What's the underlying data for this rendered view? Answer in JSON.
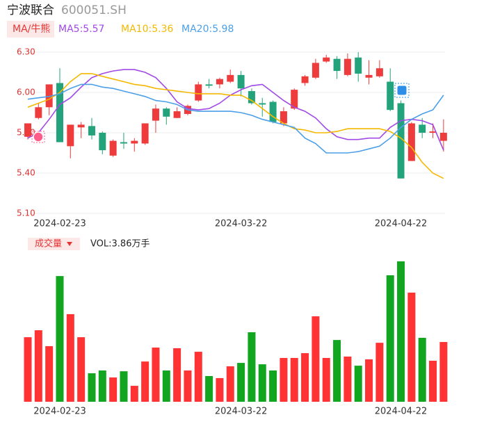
{
  "header": {
    "name": "宁波联合",
    "code": "600051.SH"
  },
  "legend": {
    "tag": "MA/牛熊",
    "items": [
      {
        "label": "MA5:5.57",
        "color": "#a148e6"
      },
      {
        "label": "MA10:5.36",
        "color": "#f5b800"
      },
      {
        "label": "MA20:5.98",
        "color": "#4a9fe8"
      }
    ]
  },
  "chart_data": [
    {
      "type": "candlestick",
      "categories": [
        null,
        null,
        null,
        "2024-02-23",
        null,
        null,
        null,
        null,
        null,
        null,
        null,
        null,
        null,
        null,
        null,
        null,
        null,
        null,
        null,
        null,
        "2024-03-22",
        null,
        null,
        null,
        null,
        null,
        null,
        null,
        null,
        null,
        null,
        null,
        null,
        null,
        null,
        "2024-04-22",
        null,
        null,
        null,
        null
      ],
      "open": [
        5.67,
        5.81,
        5.89,
        6.07,
        5.6,
        5.74,
        5.75,
        5.7,
        5.53,
        5.63,
        5.62,
        5.62,
        5.79,
        5.88,
        5.81,
        5.84,
        5.94,
        6.06,
        6.06,
        6.08,
        6.13,
        6.01,
        5.92,
        5.93,
        5.77,
        5.88,
        6.07,
        6.11,
        6.23,
        6.25,
        6.13,
        6.26,
        6.11,
        6.12,
        6.08,
        5.92,
        5.49,
        5.76,
        5.7,
        5.64
      ],
      "high": [
        5.77,
        5.92,
        6.06,
        6.18,
        5.76,
        5.78,
        5.81,
        5.71,
        5.65,
        5.7,
        5.66,
        5.77,
        5.91,
        5.89,
        5.89,
        5.91,
        6.08,
        6.1,
        6.11,
        6.17,
        6.16,
        6.03,
        5.96,
        5.94,
        5.89,
        6.03,
        6.13,
        6.25,
        6.28,
        6.27,
        6.29,
        6.3,
        6.24,
        6.24,
        6.18,
        5.94,
        5.78,
        5.81,
        5.77,
        5.8
      ],
      "low": [
        5.65,
        5.8,
        5.83,
        5.63,
        5.51,
        5.66,
        5.65,
        5.54,
        5.52,
        5.58,
        5.56,
        5.61,
        5.7,
        5.76,
        5.81,
        5.83,
        5.93,
        6.03,
        6.03,
        6.07,
        5.97,
        5.91,
        5.82,
        5.77,
        5.75,
        5.87,
        6.05,
        6.1,
        6.22,
        6.1,
        6.12,
        6.08,
        6.06,
        6.11,
        5.86,
        5.36,
        5.49,
        5.66,
        5.66,
        5.56
      ],
      "close": [
        5.77,
        5.89,
        6.06,
        5.63,
        5.76,
        5.76,
        5.68,
        5.57,
        5.64,
        5.62,
        5.64,
        5.77,
        5.88,
        5.82,
        5.86,
        5.9,
        6.06,
        6.05,
        6.1,
        6.13,
        6.03,
        5.92,
        5.91,
        5.78,
        5.86,
        6.02,
        6.12,
        6.22,
        6.26,
        6.16,
        6.25,
        6.14,
        6.13,
        6.18,
        5.87,
        5.36,
        5.77,
        5.7,
        5.71,
        5.7
      ],
      "up_color": "#ee3b3b",
      "down_color": "#23a37b",
      "series": [
        {
          "name": "MA5",
          "color": "#a148e6",
          "values": [
            5.66,
            5.7,
            5.8,
            5.91,
            5.96,
            6.04,
            6.11,
            6.14,
            6.16,
            6.17,
            6.17,
            6.15,
            6.11,
            6.03,
            5.93,
            5.88,
            5.87,
            5.88,
            5.92,
            5.98,
            6.02,
            6.05,
            6.06,
            6.0,
            5.94,
            5.89,
            5.86,
            5.81,
            5.73,
            5.67,
            5.65,
            5.65,
            5.66,
            5.66,
            5.74,
            5.79,
            5.8,
            5.79,
            5.76,
            5.57
          ]
        },
        {
          "name": "MA10",
          "color": "#f5b800",
          "values": [
            5.89,
            5.92,
            5.95,
            6.0,
            6.08,
            6.14,
            6.14,
            6.12,
            6.1,
            6.08,
            6.06,
            6.05,
            6.03,
            6.02,
            6.01,
            6.0,
            5.99,
            5.99,
            5.99,
            5.98,
            5.98,
            5.94,
            5.88,
            5.82,
            5.77,
            5.73,
            5.72,
            5.7,
            5.7,
            5.71,
            5.73,
            5.73,
            5.73,
            5.73,
            5.71,
            5.66,
            5.59,
            5.48,
            5.4,
            5.36
          ]
        },
        {
          "name": "MA20",
          "color": "#4a9fe8",
          "values": [
            5.95,
            5.96,
            5.97,
            5.99,
            6.03,
            6.06,
            6.06,
            6.04,
            6.03,
            6.01,
            5.99,
            5.97,
            5.94,
            5.93,
            5.91,
            5.87,
            5.86,
            5.86,
            5.86,
            5.86,
            5.85,
            5.83,
            5.8,
            5.78,
            5.76,
            5.74,
            5.66,
            5.62,
            5.55,
            5.55,
            5.55,
            5.56,
            5.58,
            5.6,
            5.66,
            5.74,
            5.8,
            5.84,
            5.87,
            5.98
          ]
        }
      ],
      "ylim": [
        5.1,
        6.3
      ],
      "yticks": [
        {
          "value": 6.3,
          "label": "6.30"
        },
        {
          "value": 6.0,
          "label": "6.00"
        },
        {
          "value": 5.7,
          "label": "5.70"
        },
        {
          "value": 5.4,
          "label": "5.40"
        },
        {
          "value": 5.1,
          "label": "5.10"
        }
      ],
      "grid": true
    },
    {
      "type": "bar",
      "title": "成交量",
      "label": "VOL:3.86万手",
      "categories": [
        null,
        null,
        null,
        "2024-02-23",
        null,
        null,
        null,
        null,
        null,
        null,
        null,
        null,
        null,
        null,
        null,
        null,
        null,
        null,
        null,
        null,
        "2024-03-22",
        null,
        null,
        null,
        null,
        null,
        null,
        null,
        null,
        null,
        null,
        null,
        null,
        null,
        null,
        "2024-04-22",
        null,
        null,
        null,
        null
      ],
      "values": [
        4.17,
        4.62,
        3.59,
        8.12,
        5.66,
        4.17,
        1.84,
        2.02,
        1.57,
        1.97,
        1.03,
        2.6,
        3.5,
        2.02,
        3.46,
        2.02,
        3.23,
        1.66,
        1.53,
        2.29,
        2.51,
        4.49,
        2.42,
        2.02,
        2.83,
        2.83,
        3.14,
        5.52,
        2.83,
        3.99,
        2.92,
        2.33,
        2.74,
        3.81,
        8.17,
        9.07,
        7.05,
        4.13,
        2.65,
        3.86
      ],
      "up_color": "#ff3333",
      "down_color": "#12a51f"
    }
  ]
}
